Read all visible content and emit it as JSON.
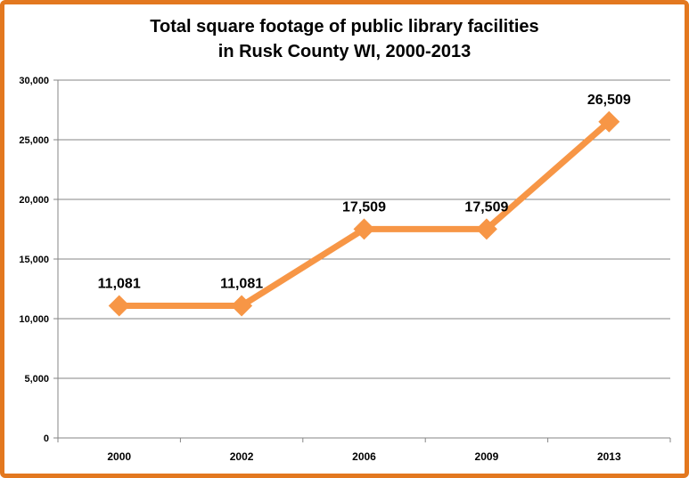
{
  "chart_data": {
    "type": "line",
    "title_line1": "Total square footage of public library facilities",
    "title_line2": "in Rusk County WI, 2000-2013",
    "categories": [
      "2000",
      "2002",
      "2006",
      "2009",
      "2013"
    ],
    "values": [
      11081,
      11081,
      17509,
      17509,
      26509
    ],
    "value_labels": [
      "11,081",
      "11,081",
      "17,509",
      "17,509",
      "26,509"
    ],
    "y_ticks": [
      0,
      5000,
      10000,
      15000,
      20000,
      25000,
      30000
    ],
    "y_tick_labels": [
      "0",
      "5,000",
      "10,000",
      "15,000",
      "20,000",
      "25,000",
      "30,000"
    ],
    "ylim": [
      0,
      30000
    ],
    "xlabel": "",
    "ylabel": "",
    "grid": true,
    "legend": "none",
    "colors": {
      "line": "#f79646",
      "frame": "#e3781f",
      "grid": "#868686"
    }
  }
}
